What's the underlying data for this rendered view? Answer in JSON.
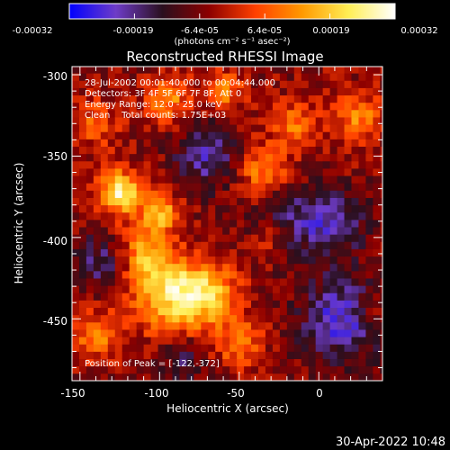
{
  "colorbar": {
    "ticks": [
      "-0.00032",
      "-0.00019",
      "-6.4e-05",
      "6.4e-05",
      "0.00019",
      "0.00032"
    ],
    "units": "(photons cm⁻² s⁻¹ asec⁻²)",
    "range": [
      -0.00032,
      0.00032
    ],
    "palette": [
      "#0000ff",
      "#6e3cc8",
      "#2a0f1e",
      "#8c0000",
      "#ff4000",
      "#ff9900",
      "#ffee55",
      "#ffffff"
    ]
  },
  "chart_data": {
    "type": "heatmap",
    "title": "Reconstructed RHESSI Image",
    "xlabel": "Heliocentric X (arcsec)",
    "ylabel": "Heliocentric Y (arcsec)",
    "xlim": [
      -155,
      40
    ],
    "ylim": [
      -488,
      -295
    ],
    "xticks": [
      "-150",
      "-100",
      "-50",
      "0"
    ],
    "xtick_values": [
      -150,
      -100,
      -50,
      0
    ],
    "yticks": [
      "-300",
      "-350",
      "-400",
      "-450"
    ],
    "ytick_values": [
      -300,
      -350,
      -400,
      -450
    ],
    "value_units": "photons cm-2 s-1 asec-2",
    "peak_position": [
      -122,
      -372
    ],
    "hotspots": [
      {
        "x": -125,
        "y": -372,
        "sigma": 9,
        "amp": 0.00032
      },
      {
        "x": -95,
        "y": -435,
        "sigma": 16,
        "amp": 0.00024
      },
      {
        "x": -70,
        "y": -435,
        "sigma": 14,
        "amp": 0.00022
      },
      {
        "x": -110,
        "y": -410,
        "sigma": 12,
        "amp": 0.00018
      },
      {
        "x": -100,
        "y": -385,
        "sigma": 8,
        "amp": 0.00022
      },
      {
        "x": -140,
        "y": -460,
        "sigma": 10,
        "amp": 0.00016
      },
      {
        "x": -95,
        "y": -315,
        "sigma": 10,
        "amp": 0.00017
      },
      {
        "x": -60,
        "y": -310,
        "sigma": 9,
        "amp": 0.00015
      },
      {
        "x": -35,
        "y": -360,
        "sigma": 12,
        "amp": 0.00016
      },
      {
        "x": -15,
        "y": -330,
        "sigma": 10,
        "amp": 0.00014
      },
      {
        "x": 25,
        "y": -325,
        "sigma": 10,
        "amp": 0.00016
      },
      {
        "x": -50,
        "y": -465,
        "sigma": 10,
        "amp": 0.00014
      },
      {
        "x": -140,
        "y": -330,
        "sigma": 10,
        "amp": 0.00012
      },
      {
        "x": -30,
        "y": -400,
        "sigma": 9,
        "amp": 0.00012
      },
      {
        "x": 35,
        "y": -445,
        "sigma": 8,
        "amp": 0.0001
      }
    ],
    "coldspots": [
      {
        "x": 15,
        "y": -450,
        "sigma": 18,
        "amp": -0.0002
      },
      {
        "x": -20,
        "y": -390,
        "sigma": 16,
        "amp": -0.00014
      },
      {
        "x": -70,
        "y": -350,
        "sigma": 14,
        "amp": -0.00016
      },
      {
        "x": -135,
        "y": -415,
        "sigma": 12,
        "amp": -0.00014
      },
      {
        "x": 10,
        "y": -390,
        "sigma": 14,
        "amp": -0.00015
      },
      {
        "x": -85,
        "y": -475,
        "sigma": 10,
        "amp": -0.0001
      }
    ]
  },
  "info": {
    "time": "28-Jul-2002 00:01:40.000 to 00:04:44.000",
    "detectors": "Detectors: 3F 4F 5F 6F 7F 8F, Att 0",
    "energy": "Energy Range: 12.0 - 25.0 keV",
    "clean": "Clean    Total counts: 1.75E+03",
    "peak": "Position of Peak = [-122,-372]"
  },
  "footer": {
    "timestamp": "30-Apr-2022 10:48"
  }
}
